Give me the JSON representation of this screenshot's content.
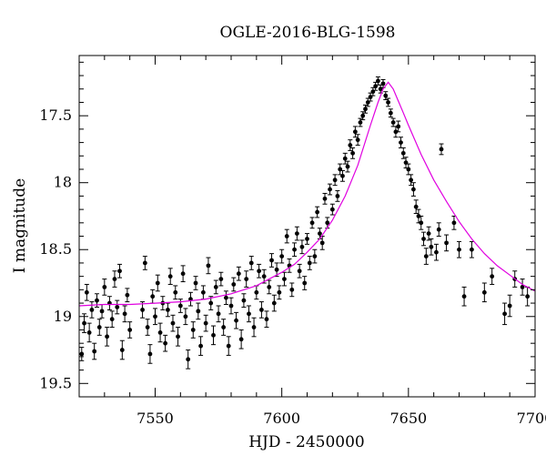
{
  "chart_data": {
    "type": "scatter",
    "title": "OGLE-2016-BLG-1598",
    "xlabel": "HJD - 2450000",
    "ylabel": "I magnitude",
    "xlim": [
      7520,
      7700
    ],
    "ylim": [
      19.6,
      17.05
    ],
    "y_inverted": true,
    "grid": false,
    "x_ticks": [
      7550,
      7600,
      7650,
      7700
    ],
    "y_ticks": [
      17.5,
      18,
      18.5,
      19,
      19.5
    ],
    "x_tick_labels": [
      "7550",
      "7600",
      "7650",
      "7700"
    ],
    "y_tick_labels": [
      "17.5",
      "18",
      "18.5",
      "19",
      "19.5"
    ],
    "colors": {
      "points": "#000000",
      "model": "#e000e0"
    },
    "model_curve": {
      "x": [
        7520,
        7530,
        7540,
        7550,
        7560,
        7570,
        7580,
        7590,
        7600,
        7605,
        7610,
        7615,
        7620,
        7625,
        7630,
        7635,
        7638,
        7640,
        7642,
        7644,
        7646,
        7648,
        7650,
        7655,
        7660,
        7665,
        7670,
        7675,
        7680,
        7685,
        7690,
        7695,
        7700
      ],
      "y": [
        18.92,
        18.91,
        18.91,
        18.9,
        18.89,
        18.87,
        18.83,
        18.77,
        18.67,
        18.61,
        18.52,
        18.42,
        18.28,
        18.1,
        17.87,
        17.57,
        17.4,
        17.3,
        17.25,
        17.3,
        17.39,
        17.48,
        17.57,
        17.79,
        17.98,
        18.14,
        18.29,
        18.42,
        18.53,
        18.62,
        18.69,
        18.76,
        18.81
      ]
    },
    "points": [
      [
        7521,
        19.28,
        0.05
      ],
      [
        7522,
        19.05,
        0.07
      ],
      [
        7523,
        18.82,
        0.06
      ],
      [
        7524,
        19.12,
        0.07
      ],
      [
        7525,
        18.95,
        0.06
      ],
      [
        7526,
        19.26,
        0.06
      ],
      [
        7527,
        18.88,
        0.05
      ],
      [
        7528,
        19.08,
        0.06
      ],
      [
        7529,
        18.96,
        0.05
      ],
      [
        7530,
        18.78,
        0.06
      ],
      [
        7531,
        19.15,
        0.07
      ],
      [
        7532,
        18.9,
        0.05
      ],
      [
        7533,
        19.02,
        0.06
      ],
      [
        7534,
        18.72,
        0.06
      ],
      [
        7535,
        18.93,
        0.05
      ],
      [
        7536,
        18.66,
        0.05
      ],
      [
        7537,
        19.25,
        0.07
      ],
      [
        7538,
        18.98,
        0.06
      ],
      [
        7539,
        18.84,
        0.05
      ],
      [
        7540,
        19.1,
        0.06
      ],
      [
        7545,
        18.95,
        0.06
      ],
      [
        7546,
        18.6,
        0.05
      ],
      [
        7547,
        19.08,
        0.06
      ],
      [
        7548,
        19.28,
        0.07
      ],
      [
        7549,
        18.85,
        0.05
      ],
      [
        7550,
        19.0,
        0.06
      ],
      [
        7551,
        18.75,
        0.06
      ],
      [
        7552,
        19.12,
        0.07
      ],
      [
        7553,
        18.9,
        0.05
      ],
      [
        7554,
        19.2,
        0.06
      ],
      [
        7555,
        18.95,
        0.05
      ],
      [
        7556,
        18.7,
        0.06
      ],
      [
        7557,
        19.05,
        0.06
      ],
      [
        7558,
        18.82,
        0.05
      ],
      [
        7559,
        19.15,
        0.07
      ],
      [
        7560,
        18.92,
        0.05
      ],
      [
        7561,
        18.68,
        0.06
      ],
      [
        7562,
        19.0,
        0.06
      ],
      [
        7563,
        19.32,
        0.07
      ],
      [
        7564,
        18.87,
        0.05
      ],
      [
        7565,
        19.1,
        0.06
      ],
      [
        7566,
        18.75,
        0.05
      ],
      [
        7567,
        18.96,
        0.06
      ],
      [
        7568,
        19.22,
        0.07
      ],
      [
        7569,
        18.82,
        0.05
      ],
      [
        7570,
        19.05,
        0.06
      ],
      [
        7571,
        18.62,
        0.06
      ],
      [
        7572,
        18.9,
        0.05
      ],
      [
        7573,
        19.14,
        0.07
      ],
      [
        7574,
        18.78,
        0.05
      ],
      [
        7575,
        18.98,
        0.06
      ],
      [
        7576,
        18.72,
        0.05
      ],
      [
        7577,
        19.08,
        0.06
      ],
      [
        7578,
        18.86,
        0.05
      ],
      [
        7579,
        19.22,
        0.07
      ],
      [
        7580,
        18.92,
        0.06
      ],
      [
        7581,
        18.76,
        0.05
      ],
      [
        7582,
        19.03,
        0.06
      ],
      [
        7583,
        18.68,
        0.05
      ],
      [
        7584,
        19.17,
        0.07
      ],
      [
        7585,
        18.88,
        0.05
      ],
      [
        7586,
        18.72,
        0.06
      ],
      [
        7587,
        18.98,
        0.06
      ],
      [
        7588,
        18.6,
        0.05
      ],
      [
        7589,
        19.08,
        0.07
      ],
      [
        7590,
        18.82,
        0.05
      ],
      [
        7591,
        18.66,
        0.05
      ],
      [
        7592,
        18.95,
        0.06
      ],
      [
        7593,
        18.7,
        0.05
      ],
      [
        7594,
        19.02,
        0.06
      ],
      [
        7595,
        18.78,
        0.05
      ],
      [
        7596,
        18.58,
        0.05
      ],
      [
        7597,
        18.9,
        0.06
      ],
      [
        7598,
        18.65,
        0.05
      ],
      [
        7599,
        18.82,
        0.05
      ],
      [
        7600,
        18.55,
        0.05
      ],
      [
        7601,
        18.72,
        0.05
      ],
      [
        7602,
        18.4,
        0.05
      ],
      [
        7603,
        18.62,
        0.05
      ],
      [
        7604,
        18.8,
        0.05
      ],
      [
        7605,
        18.5,
        0.05
      ],
      [
        7606,
        18.38,
        0.05
      ],
      [
        7607,
        18.66,
        0.05
      ],
      [
        7608,
        18.48,
        0.05
      ],
      [
        7609,
        18.75,
        0.05
      ],
      [
        7610,
        18.42,
        0.04
      ],
      [
        7611,
        18.6,
        0.05
      ],
      [
        7612,
        18.3,
        0.04
      ],
      [
        7613,
        18.55,
        0.05
      ],
      [
        7614,
        18.22,
        0.04
      ],
      [
        7615,
        18.38,
        0.04
      ],
      [
        7616,
        18.45,
        0.05
      ],
      [
        7617,
        18.12,
        0.04
      ],
      [
        7618,
        18.3,
        0.04
      ],
      [
        7619,
        18.05,
        0.04
      ],
      [
        7620,
        18.2,
        0.04
      ],
      [
        7621,
        17.98,
        0.04
      ],
      [
        7622,
        18.1,
        0.04
      ],
      [
        7623,
        17.9,
        0.04
      ],
      [
        7624,
        17.95,
        0.04
      ],
      [
        7625,
        17.82,
        0.04
      ],
      [
        7626,
        17.88,
        0.04
      ],
      [
        7627,
        17.72,
        0.04
      ],
      [
        7628,
        17.78,
        0.04
      ],
      [
        7629,
        17.62,
        0.04
      ],
      [
        7630,
        17.68,
        0.04
      ],
      [
        7631,
        17.55,
        0.03
      ],
      [
        7632,
        17.5,
        0.03
      ],
      [
        7633,
        17.45,
        0.03
      ],
      [
        7634,
        17.4,
        0.03
      ],
      [
        7635,
        17.36,
        0.03
      ],
      [
        7636,
        17.32,
        0.03
      ],
      [
        7637,
        17.28,
        0.03
      ],
      [
        7638,
        17.24,
        0.03
      ],
      [
        7639,
        17.3,
        0.03
      ],
      [
        7640,
        17.26,
        0.03
      ],
      [
        7641,
        17.35,
        0.03
      ],
      [
        7642,
        17.4,
        0.03
      ],
      [
        7643,
        17.48,
        0.03
      ],
      [
        7644,
        17.55,
        0.03
      ],
      [
        7645,
        17.62,
        0.04
      ],
      [
        7646,
        17.58,
        0.04
      ],
      [
        7647,
        17.7,
        0.04
      ],
      [
        7648,
        17.78,
        0.04
      ],
      [
        7649,
        17.85,
        0.04
      ],
      [
        7650,
        17.9,
        0.04
      ],
      [
        7651,
        17.98,
        0.04
      ],
      [
        7652,
        18.05,
        0.05
      ],
      [
        7653,
        18.18,
        0.05
      ],
      [
        7654,
        18.25,
        0.05
      ],
      [
        7655,
        18.3,
        0.05
      ],
      [
        7656,
        18.42,
        0.05
      ],
      [
        7657,
        18.55,
        0.06
      ],
      [
        7658,
        18.38,
        0.05
      ],
      [
        7659,
        18.48,
        0.06
      ],
      [
        7661,
        18.52,
        0.06
      ],
      [
        7662,
        18.35,
        0.05
      ],
      [
        7663,
        17.75,
        0.04
      ],
      [
        7665,
        18.45,
        0.06
      ],
      [
        7668,
        18.3,
        0.05
      ],
      [
        7670,
        18.5,
        0.06
      ],
      [
        7672,
        18.85,
        0.07
      ],
      [
        7675,
        18.5,
        0.06
      ],
      [
        7680,
        18.82,
        0.07
      ],
      [
        7683,
        18.7,
        0.06
      ],
      [
        7688,
        18.98,
        0.08
      ],
      [
        7690,
        18.92,
        0.08
      ],
      [
        7692,
        18.72,
        0.06
      ],
      [
        7695,
        18.78,
        0.06
      ],
      [
        7697,
        18.85,
        0.07
      ]
    ]
  }
}
